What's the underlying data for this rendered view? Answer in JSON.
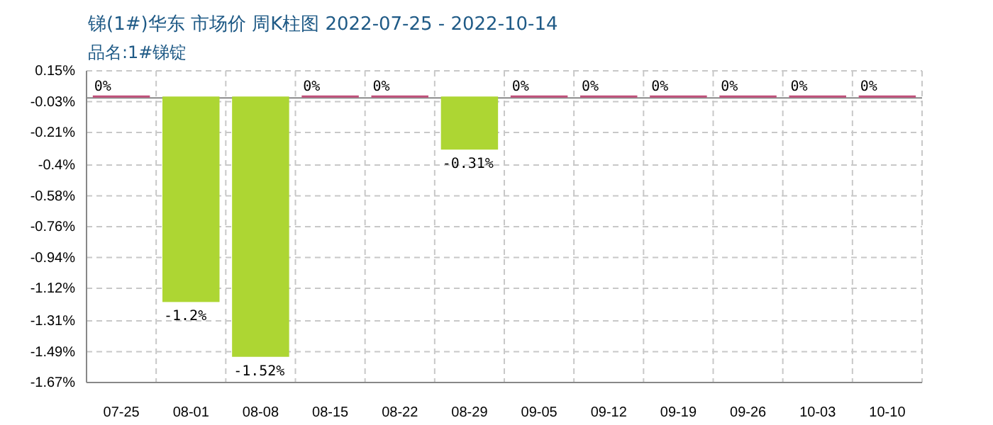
{
  "chart_data": {
    "type": "bar",
    "title": "锑(1#)华东 市场价 周K柱图 2022-07-25 - 2022-10-14",
    "subtitle": "品名:1#锑锭",
    "categories": [
      "07-25",
      "08-01",
      "08-08",
      "08-15",
      "08-22",
      "08-29",
      "09-05",
      "09-12",
      "09-19",
      "09-26",
      "10-03",
      "10-10"
    ],
    "values": [
      0,
      -1.2,
      -1.52,
      0,
      0,
      -0.31,
      0,
      0,
      0,
      0,
      0,
      0
    ],
    "value_labels": [
      "0%",
      "-1.2%",
      "-1.52%",
      "0%",
      "0%",
      "-0.31%",
      "0%",
      "0%",
      "0%",
      "0%",
      "0%",
      "0%"
    ],
    "colors": [
      "#c0507a",
      "#add633",
      "#add633",
      "#c0507a",
      "#c0507a",
      "#add633",
      "#c0507a",
      "#c0507a",
      "#c0507a",
      "#c0507a",
      "#c0507a",
      "#c0507a"
    ],
    "ylim": [
      -1.67,
      0.15
    ],
    "yticks": [
      {
        "value": 0.15,
        "label": "0.15%"
      },
      {
        "value": -0.03,
        "label": "-0.03%"
      },
      {
        "value": -0.21,
        "label": "-0.21%"
      },
      {
        "value": -0.4,
        "label": "-0.4%"
      },
      {
        "value": -0.58,
        "label": "-0.58%"
      },
      {
        "value": -0.76,
        "label": "-0.76%"
      },
      {
        "value": -0.94,
        "label": "-0.94%"
      },
      {
        "value": -1.12,
        "label": "-1.12%"
      },
      {
        "value": -1.31,
        "label": "-1.31%"
      },
      {
        "value": -1.49,
        "label": "-1.49%"
      },
      {
        "value": -1.67,
        "label": "-1.67%"
      }
    ],
    "grid": true
  }
}
